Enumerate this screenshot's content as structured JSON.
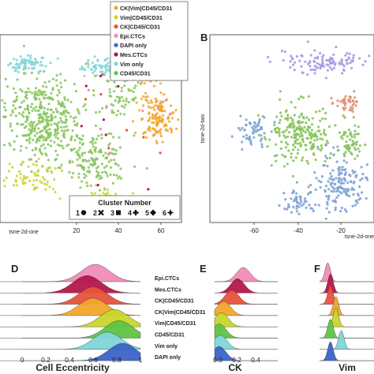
{
  "colors": {
    "epi": "#f08cb8",
    "mes": "#b5174b",
    "ck_only": "#e8523a",
    "ck_vim": "#f2a62a",
    "vim_cd": "#c8d62a",
    "cd_only": "#5ec446",
    "vim_only": "#7fd6d8",
    "dapi": "#3b63c8",
    "lavender": "#a79ae6",
    "salmon": "#e09070",
    "steel": "#7ea3d6",
    "moss": "#87c45a"
  },
  "chart_data": [
    {
      "panel": "A",
      "type": "scatter",
      "xlabel": "tsne-2d-one",
      "x_ticks": [
        "20",
        "40",
        "60"
      ],
      "legend": {
        "placement": "top-right",
        "entries": [
          "CK|Vim|CD45/CD31",
          "Vim|CD45/CD31",
          "CK|CD45/CD31",
          "Epi.CTCs",
          "DAPI only",
          "Mes.CTCs",
          "Vim only",
          "CD45/CD31"
        ],
        "entry_colors": [
          "#f2a62a",
          "#c8d62a",
          "#e8523a",
          "#f08cb8",
          "#3b63c8",
          "#b5174b",
          "#7fd6d8",
          "#5ec446"
        ]
      },
      "cluster_legend": {
        "title": "Cluster Number",
        "entries": [
          {
            "label": "1",
            "marker": "circle"
          },
          {
            "label": "2",
            "marker": "x"
          },
          {
            "label": "3",
            "marker": "square"
          },
          {
            "label": "4",
            "marker": "plus"
          },
          {
            "label": "5",
            "marker": "diamond"
          },
          {
            "label": "6",
            "marker": "star"
          }
        ]
      }
    },
    {
      "panel": "B",
      "type": "scatter",
      "xlabel": "tsne-2d-one",
      "ylabel": "tsne-2d-two",
      "x_ticks": [
        "-60",
        "-40",
        "-20"
      ]
    },
    {
      "panel": "D",
      "type": "area",
      "xlabel": "Cell Eccentricity",
      "x_ticks": [
        "0",
        "0.2",
        "0.4",
        "0.6",
        "0.8",
        "1"
      ],
      "xlim": [
        0,
        1
      ],
      "series": [
        {
          "name": "Epi.CTCs",
          "peaks": [
            0.62
          ]
        },
        {
          "name": "Mes.CTCs",
          "peaks": [
            0.55
          ]
        },
        {
          "name": "CK|CD45/CD31",
          "peaks": [
            0.6
          ]
        },
        {
          "name": "CK|Vim|CD45/CD31",
          "peaks": [
            0.6
          ]
        },
        {
          "name": "Vim|CD45/CD31",
          "peaks": [
            0.78
          ]
        },
        {
          "name": "CD45/CD31",
          "peaks": [
            0.82
          ]
        },
        {
          "name": "Vim only",
          "peaks": [
            0.72
          ]
        },
        {
          "name": "DAPI only",
          "peaks": [
            0.85
          ]
        }
      ]
    },
    {
      "panel": "E",
      "type": "area",
      "xlabel": "CK",
      "x_ticks": [
        "0.0",
        "0.2",
        "0.4"
      ],
      "xlim": [
        0,
        0.55
      ],
      "series": [
        {
          "name": "Epi.CTCs",
          "peaks": [
            0.25
          ]
        },
        {
          "name": "Mes.CTCs",
          "peaks": [
            0.2
          ]
        },
        {
          "name": "CK|CD45/CD31",
          "peaks": [
            0.15
          ]
        },
        {
          "name": "CK|Vim|CD45/CD31",
          "peaks": [
            0.08
          ]
        },
        {
          "name": "Vim|CD45/CD31",
          "peaks": [
            0.06
          ]
        },
        {
          "name": "CD45/CD31",
          "peaks": [
            0.04
          ]
        },
        {
          "name": "Vim only",
          "peaks": [
            0.05
          ]
        },
        {
          "name": "DAPI only",
          "peaks": [
            0.04
          ]
        }
      ]
    },
    {
      "panel": "F",
      "type": "area",
      "xlabel": "Vim",
      "xlim": [
        0,
        1
      ],
      "series": [
        {
          "name": "Epi.CTCs",
          "peaks": [
            0.15
          ]
        },
        {
          "name": "Mes.CTCs",
          "peaks": [
            0.2
          ]
        },
        {
          "name": "CK|CD45/CD31",
          "peaks": [
            0.2
          ]
        },
        {
          "name": "CK|Vim|CD45/CD31",
          "peaks": [
            0.3
          ]
        },
        {
          "name": "Vim|CD45/CD31",
          "peaks": [
            0.3
          ]
        },
        {
          "name": "CD45/CD31",
          "peaks": [
            0.2
          ]
        },
        {
          "name": "Vim only",
          "peaks": [
            0.4
          ]
        },
        {
          "name": "DAPI only",
          "peaks": [
            0.2
          ]
        }
      ]
    }
  ],
  "labels": {
    "panel_b": "B",
    "panel_d": "D",
    "panel_e": "E",
    "panel_f": "F"
  }
}
